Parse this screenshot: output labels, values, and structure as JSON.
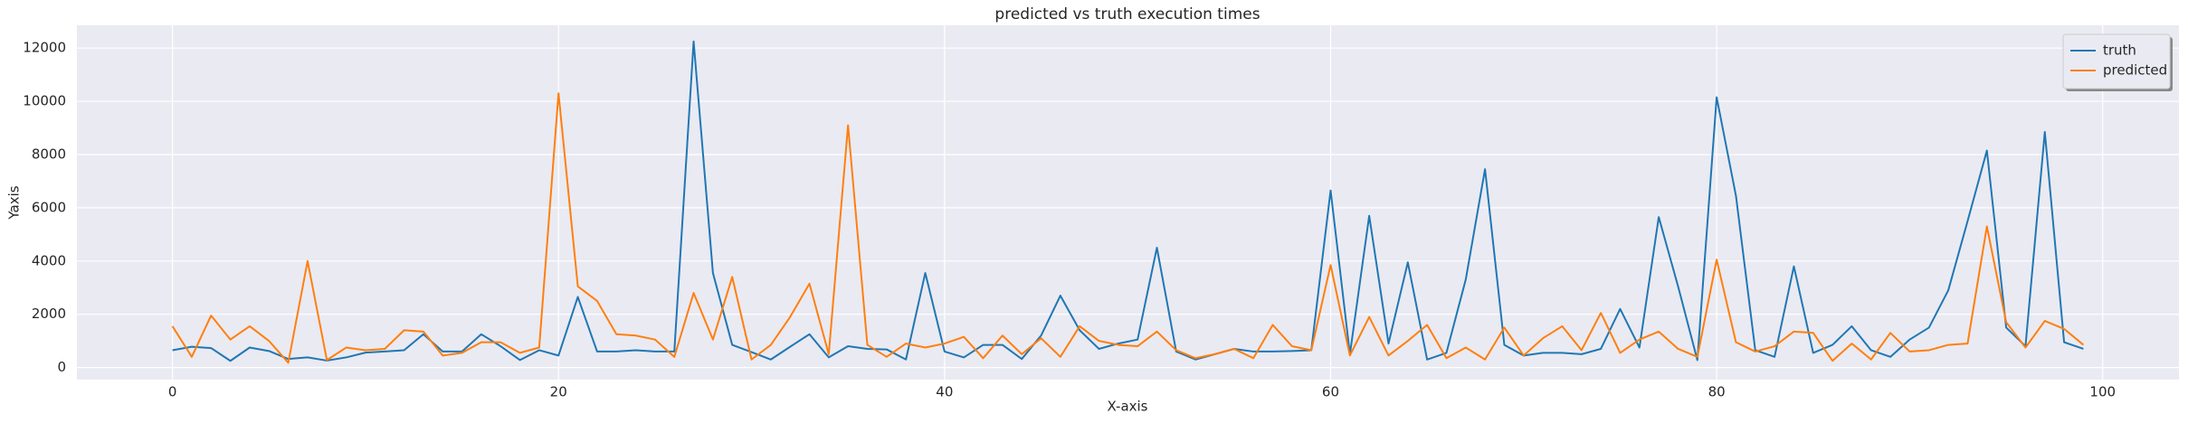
{
  "chart_data": {
    "type": "line",
    "title": "predicted vs truth execution times",
    "xlabel": "X-axis",
    "ylabel": "Yaxis",
    "x": [
      0,
      1,
      2,
      3,
      4,
      5,
      6,
      7,
      8,
      9,
      10,
      11,
      12,
      13,
      14,
      15,
      16,
      17,
      18,
      19,
      20,
      21,
      22,
      23,
      24,
      25,
      26,
      27,
      28,
      29,
      30,
      31,
      32,
      33,
      34,
      35,
      36,
      37,
      38,
      39,
      40,
      41,
      42,
      43,
      44,
      45,
      46,
      47,
      48,
      49,
      50,
      51,
      52,
      53,
      54,
      55,
      56,
      57,
      58,
      59,
      60,
      61,
      62,
      63,
      64,
      65,
      66,
      67,
      68,
      69,
      70,
      71,
      72,
      73,
      74,
      75,
      76,
      77,
      78,
      79,
      80,
      81,
      82,
      83,
      84,
      85,
      86,
      87,
      88,
      89,
      90,
      91,
      92,
      93,
      94,
      95,
      96,
      97,
      98,
      99
    ],
    "series": [
      {
        "name": "truth",
        "color": "#1f77b4",
        "values": [
          650,
          780,
          730,
          250,
          750,
          620,
          320,
          380,
          260,
          380,
          560,
          600,
          650,
          1250,
          600,
          600,
          1250,
          800,
          280,
          650,
          450,
          2650,
          600,
          600,
          650,
          600,
          600,
          12250,
          3550,
          850,
          580,
          300,
          780,
          1250,
          380,
          800,
          700,
          680,
          300,
          3550,
          600,
          380,
          850,
          850,
          320,
          1200,
          2700,
          1400,
          700,
          900,
          1050,
          4500,
          600,
          300,
          500,
          700,
          600,
          600,
          620,
          650,
          6650,
          500,
          5700,
          900,
          3950,
          300,
          550,
          3300,
          7450,
          850,
          450,
          550,
          550,
          500,
          700,
          2200,
          750,
          5650,
          3050,
          280,
          10150,
          6450,
          650,
          400,
          3800,
          550,
          850,
          1550,
          650,
          400,
          1050,
          1500,
          2900,
          5500,
          8150,
          1500,
          800,
          8850,
          950,
          700
        ]
      },
      {
        "name": "predicted",
        "color": "#ff7f0e",
        "values": [
          1550,
          400,
          1950,
          1050,
          1550,
          1000,
          180,
          4000,
          280,
          750,
          650,
          700,
          1400,
          1350,
          450,
          550,
          950,
          950,
          550,
          750,
          10300,
          3050,
          2500,
          1250,
          1200,
          1050,
          400,
          2800,
          1050,
          3400,
          300,
          850,
          1900,
          3150,
          500,
          9100,
          850,
          400,
          900,
          750,
          900,
          1150,
          350,
          1200,
          500,
          1100,
          400,
          1550,
          1000,
          850,
          800,
          1350,
          650,
          350,
          500,
          700,
          350,
          1600,
          800,
          650,
          3850,
          450,
          1900,
          450,
          1000,
          1600,
          350,
          750,
          300,
          1500,
          450,
          1100,
          1550,
          650,
          2050,
          550,
          1050,
          1350,
          700,
          400,
          4050,
          950,
          600,
          800,
          1350,
          1300,
          250,
          900,
          300,
          1300,
          600,
          650,
          850,
          900,
          5300,
          1700,
          750,
          1750,
          1450,
          850
        ]
      }
    ],
    "xlim": [
      -4.95,
      103.95
    ],
    "xticks": [
      0,
      20,
      40,
      60,
      80,
      100
    ],
    "ylim": [
      -455,
      12855
    ],
    "yticks": [
      0,
      2000,
      4000,
      6000,
      8000,
      10000,
      12000
    ],
    "grid": true,
    "legend": "upper right"
  }
}
